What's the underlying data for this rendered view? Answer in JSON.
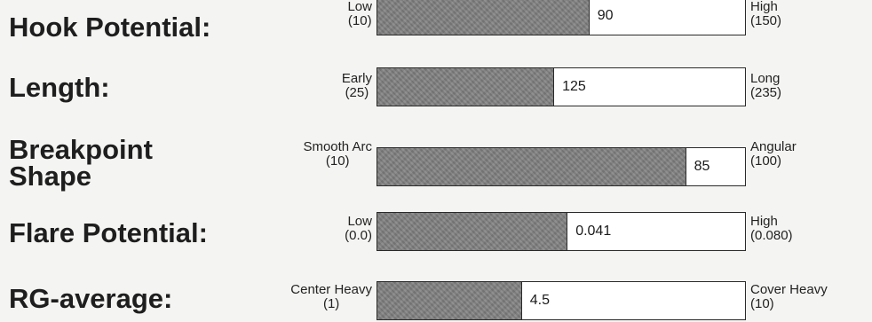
{
  "chart_data": {
    "type": "bar",
    "orientation": "horizontal",
    "rows": [
      {
        "title": "Hook Potential:",
        "low_label": "Low",
        "low_value": "(10)",
        "high_label": "High",
        "high_value": "(150)",
        "min": 10,
        "max": 150,
        "value": 90,
        "value_text": "90"
      },
      {
        "title": "Length:",
        "low_label": "Early",
        "low_value": "(25)",
        "high_label": "Long",
        "high_value": "(235)",
        "min": 25,
        "max": 235,
        "value": 125,
        "value_text": "125"
      },
      {
        "title": "Breakpoint\nShape",
        "low_label": "Smooth Arc",
        "low_value": "(10)",
        "high_label": "Angular",
        "high_value": "(100)",
        "min": 10,
        "max": 100,
        "value": 85,
        "value_text": "85"
      },
      {
        "title": "Flare Potential:",
        "low_label": "Low",
        "low_value": "(0.0)",
        "high_label": "High",
        "high_value": "(0.080)",
        "min": 0.0,
        "max": 0.08,
        "value": 0.041,
        "value_text": "0.041"
      },
      {
        "title": "RG-average:",
        "low_label": "Center Heavy",
        "low_value": "(1)",
        "high_label": "Cover Heavy",
        "high_value": "(10)",
        "min": 1,
        "max": 10,
        "value": 4.5,
        "value_text": "4.5"
      }
    ]
  },
  "colors": {
    "fill": "#7f7f7f",
    "bar_bg": "#ffffff",
    "border": "#2a2a2a",
    "page_bg": "#f4f4f2"
  }
}
